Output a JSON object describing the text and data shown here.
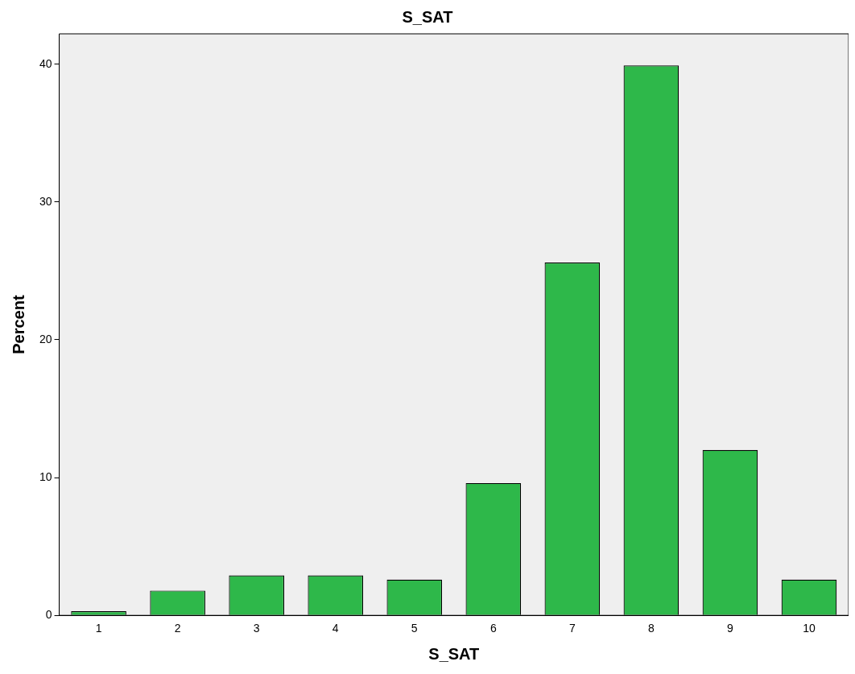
{
  "chart_data": {
    "type": "bar",
    "title": "S_SAT",
    "xlabel": "S_SAT",
    "ylabel": "Percent",
    "categories": [
      "1",
      "2",
      "3",
      "4",
      "5",
      "6",
      "7",
      "8",
      "9",
      "10"
    ],
    "values": [
      0.3,
      1.8,
      2.9,
      2.9,
      2.6,
      9.6,
      25.6,
      39.9,
      12.0,
      2.6
    ],
    "color": "#2eb84a",
    "ylim": [
      0,
      42.2
    ],
    "yticks": [
      0,
      10,
      20,
      30,
      40
    ],
    "grid": false,
    "legend": false
  }
}
